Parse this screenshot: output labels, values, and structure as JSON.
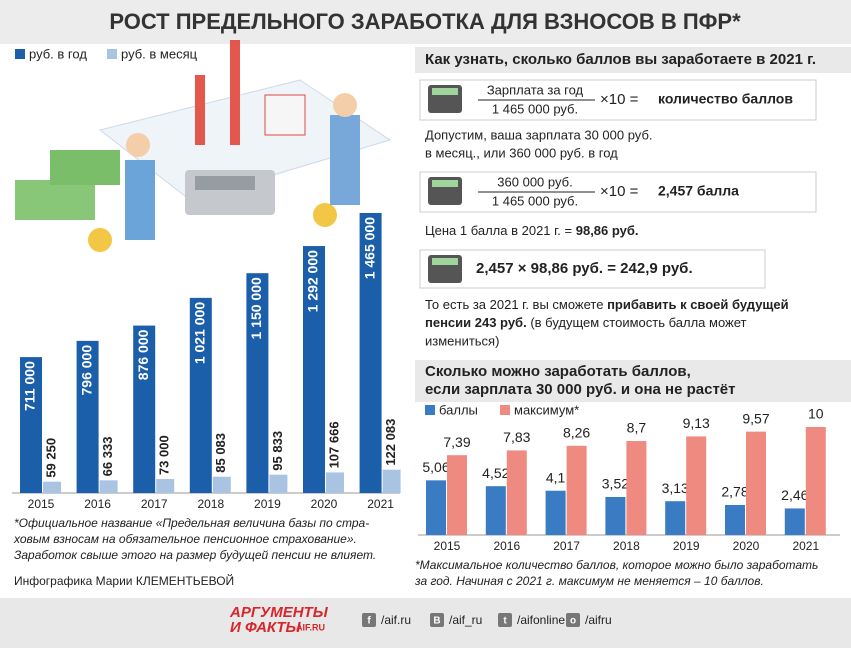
{
  "title": "РОСТ ПРЕДЕЛЬНОГО ЗАРАБОТКА ДЛЯ ВЗНОСОВ В ПФР*",
  "chart_data": [
    {
      "type": "bar",
      "categories": [
        "2015",
        "2016",
        "2017",
        "2018",
        "2019",
        "2020",
        "2021"
      ],
      "series": [
        {
          "name": "руб. в год",
          "color": "#1b5ea9",
          "values": [
            711000,
            796000,
            876000,
            1021000,
            1150000,
            1292000,
            1465000
          ],
          "value_labels": [
            "711 000",
            "796 000",
            "876 000",
            "1 021 000",
            "1 150 000",
            "1 292 000",
            "1 465 000"
          ]
        },
        {
          "name": "руб. в месяц",
          "color": "#a9c3e3",
          "values": [
            59250,
            66333,
            73000,
            85083,
            95833,
            107666,
            122083
          ],
          "value_labels": [
            "59 250",
            "66 333",
            "73 000",
            "85 083",
            "95 833",
            "107 666",
            "122 083"
          ]
        }
      ]
    },
    {
      "type": "bar",
      "title_lines": [
        "Сколько можно заработать баллов,",
        "если зарплата 30 000 руб. и она не растёт"
      ],
      "categories": [
        "2015",
        "2016",
        "2017",
        "2018",
        "2019",
        "2020",
        "2021"
      ],
      "series": [
        {
          "name": "баллы",
          "color": "#3a7cc4",
          "values": [
            5.06,
            4.52,
            4.1,
            3.52,
            3.13,
            2.78,
            2.46
          ],
          "value_labels": [
            "5,06",
            "4,52",
            "4,1",
            "3,52",
            "3,13",
            "2,78",
            "2,46"
          ]
        },
        {
          "name": "максимум*",
          "color": "#ef8a80",
          "values": [
            7.39,
            7.83,
            8.26,
            8.7,
            9.13,
            9.57,
            10
          ],
          "value_labels": [
            "7,39",
            "7,83",
            "8,26",
            "8,7",
            "9,13",
            "9,57",
            "10"
          ]
        }
      ],
      "footnote": [
        "*Максимальное количество баллов, которое можно было заработать",
        "за год. Начиная с 2021 г. максимум не меняется – 10 баллов."
      ]
    }
  ],
  "calc": {
    "heading": "Как узнать, сколько баллов вы заработаете в 2021 г.",
    "f1": {
      "num": "Зарплата за год",
      "den": "1 465 000 руб.",
      "op": "×10 =",
      "result": "количество баллов"
    },
    "example": [
      "Допустим, ваша зарплата 30 000 руб.",
      "в месяц., или 360 000 руб. в год"
    ],
    "f2": {
      "num": "360 000 руб.",
      "den": "1 465 000 руб.",
      "op": "×10 =",
      "result": "2,457 балла"
    },
    "price": {
      "text": "Цена 1 балла в 2021 г. = ",
      "value": "98,86 руб."
    },
    "f3": "2,457  ×  98,86 руб. = 242,9 руб.",
    "conclusion": [
      [
        "То есть за 2021 г. вы сможете ",
        "прибавить к своей будущей"
      ],
      [
        "пенсии 243 руб.",
        " (в будущем стоимость балла может"
      ],
      [
        "измениться)"
      ]
    ]
  },
  "notes": [
    "*Официальное название «Предельная величина базы по стра-",
    "ховым взносам на обязательное пенсионное страхование».",
    "Заработок свыше этого на размер будущей пенсии не влияет."
  ],
  "credit": "Инфографика Марии КЛЕМЕНТЬЕВОЙ",
  "footer": {
    "logo": [
      "АРГУМЕНТЫ",
      "И ФАКТЫ",
      "AIF.RU"
    ],
    "social": [
      [
        "f",
        "/aif.ru"
      ],
      [
        "В",
        "/aif_ru"
      ],
      [
        "t",
        "/aifonline"
      ],
      [
        "о",
        "/aifru"
      ]
    ]
  }
}
